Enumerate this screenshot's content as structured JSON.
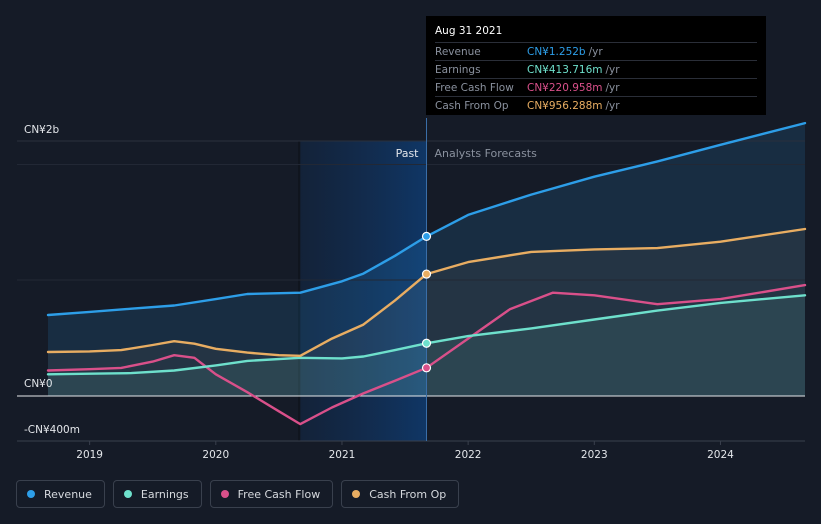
{
  "tooltip": {
    "date": "Aug 31 2021",
    "rows": [
      {
        "label": "Revenue",
        "value": "CN¥1.252b",
        "suffix": "/yr",
        "color": "#2d9ee8"
      },
      {
        "label": "Earnings",
        "value": "CN¥413.716m",
        "suffix": "/yr",
        "color": "#6ee0cc"
      },
      {
        "label": "Free Cash Flow",
        "value": "CN¥220.958m",
        "suffix": "/yr",
        "color": "#d9508a"
      },
      {
        "label": "Cash From Op",
        "value": "CN¥956.288m",
        "suffix": "/yr",
        "color": "#e8ad62"
      }
    ]
  },
  "legend": [
    {
      "label": "Revenue",
      "color": "#2d9ee8"
    },
    {
      "label": "Earnings",
      "color": "#6ee0cc"
    },
    {
      "label": "Free Cash Flow",
      "color": "#d9508a"
    },
    {
      "label": "Cash From Op",
      "color": "#e8ad62"
    }
  ],
  "chart_data": {
    "type": "line",
    "currency": "CN¥",
    "y_ticks": [
      {
        "value": 2000,
        "label": "CN¥2b"
      },
      {
        "value": 0,
        "label": "CN¥0"
      },
      {
        "value": -400,
        "label": "-CN¥400m"
      }
    ],
    "ylim": [
      -400,
      2000
    ],
    "x_ticks": [
      "2019",
      "2020",
      "2021",
      "2022",
      "2023",
      "2024"
    ],
    "xlim": [
      2018.6,
      2024.67
    ],
    "past_label": "Past",
    "forecast_label": "Analysts Forecasts",
    "divider_x": 2021.67,
    "highlight_start": 2020.67,
    "series": [
      {
        "name": "Revenue",
        "color": "#2d9ee8",
        "x": [
          2018.67,
          2019.0,
          2019.33,
          2019.67,
          2020.0,
          2020.25,
          2020.67,
          2021.0,
          2021.17,
          2021.42,
          2021.67,
          2022.0,
          2022.5,
          2023.0,
          2023.5,
          2024.0,
          2024.67
        ],
        "y": [
          635,
          660,
          685,
          710,
          760,
          800,
          810,
          900,
          960,
          1100,
          1252,
          1420,
          1580,
          1720,
          1840,
          1970,
          2140
        ]
      },
      {
        "name": "Earnings",
        "color": "#6ee0cc",
        "x": [
          2018.67,
          2019.0,
          2019.33,
          2019.67,
          2020.0,
          2020.25,
          2020.67,
          2021.0,
          2021.17,
          2021.42,
          2021.67,
          2022.0,
          2022.5,
          2023.0,
          2023.5,
          2024.0,
          2024.67
        ],
        "y": [
          170,
          175,
          180,
          200,
          240,
          275,
          300,
          295,
          310,
          360,
          413.716,
          470,
          530,
          600,
          670,
          730,
          790
        ]
      },
      {
        "name": "Free Cash Flow",
        "color": "#d9508a",
        "x": [
          2018.67,
          2019.0,
          2019.25,
          2019.5,
          2019.67,
          2019.83,
          2020.0,
          2020.25,
          2020.5,
          2020.67,
          2020.92,
          2021.17,
          2021.42,
          2021.67,
          2022.0,
          2022.33,
          2022.67,
          2023.0,
          2023.5,
          2024.0,
          2024.67
        ],
        "y": [
          200,
          210,
          220,
          270,
          320,
          300,
          170,
          30,
          -120,
          -220,
          -90,
          20,
          120,
          220.958,
          450,
          680,
          810,
          790,
          720,
          760,
          870
        ]
      },
      {
        "name": "Cash From Op",
        "color": "#e8ad62",
        "x": [
          2018.67,
          2019.0,
          2019.25,
          2019.5,
          2019.67,
          2019.83,
          2020.0,
          2020.25,
          2020.5,
          2020.67,
          2020.92,
          2021.17,
          2021.42,
          2021.67,
          2022.0,
          2022.5,
          2023.0,
          2023.5,
          2024.0,
          2024.67
        ],
        "y": [
          345,
          350,
          360,
          400,
          430,
          410,
          370,
          340,
          320,
          315,
          450,
          560,
          750,
          956.288,
          1050,
          1130,
          1150,
          1160,
          1210,
          1310
        ]
      }
    ]
  }
}
